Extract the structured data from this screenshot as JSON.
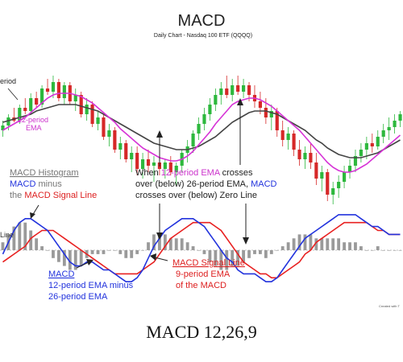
{
  "chart_data": {
    "type": "line",
    "title": "MACD",
    "subtitle": "Daily Chart - Nasdaq 100 ETF (QQQQ)",
    "price_panel": {
      "ylim": [
        0,
        100
      ],
      "candles": [
        {
          "o": 50,
          "h": 56,
          "l": 46,
          "c": 53
        },
        {
          "o": 53,
          "h": 60,
          "l": 50,
          "c": 58
        },
        {
          "o": 58,
          "h": 64,
          "l": 55,
          "c": 56
        },
        {
          "o": 56,
          "h": 66,
          "l": 54,
          "c": 64
        },
        {
          "o": 64,
          "h": 70,
          "l": 60,
          "c": 62
        },
        {
          "o": 62,
          "h": 73,
          "l": 60,
          "c": 70
        },
        {
          "o": 70,
          "h": 74,
          "l": 64,
          "c": 66
        },
        {
          "o": 66,
          "h": 78,
          "l": 64,
          "c": 76
        },
        {
          "o": 76,
          "h": 82,
          "l": 72,
          "c": 74
        },
        {
          "o": 74,
          "h": 84,
          "l": 70,
          "c": 80
        },
        {
          "o": 80,
          "h": 82,
          "l": 68,
          "c": 70
        },
        {
          "o": 70,
          "h": 80,
          "l": 66,
          "c": 78
        },
        {
          "o": 78,
          "h": 80,
          "l": 66,
          "c": 68
        },
        {
          "o": 68,
          "h": 76,
          "l": 62,
          "c": 72
        },
        {
          "o": 72,
          "h": 74,
          "l": 58,
          "c": 60
        },
        {
          "o": 60,
          "h": 70,
          "l": 56,
          "c": 66
        },
        {
          "o": 66,
          "h": 68,
          "l": 52,
          "c": 54
        },
        {
          "o": 54,
          "h": 62,
          "l": 50,
          "c": 58
        },
        {
          "o": 58,
          "h": 60,
          "l": 44,
          "c": 46
        },
        {
          "o": 46,
          "h": 54,
          "l": 40,
          "c": 50
        },
        {
          "o": 50,
          "h": 52,
          "l": 36,
          "c": 38
        },
        {
          "o": 38,
          "h": 46,
          "l": 32,
          "c": 42
        },
        {
          "o": 42,
          "h": 44,
          "l": 30,
          "c": 32
        },
        {
          "o": 32,
          "h": 40,
          "l": 24,
          "c": 36
        },
        {
          "o": 36,
          "h": 40,
          "l": 22,
          "c": 26
        },
        {
          "o": 26,
          "h": 36,
          "l": 20,
          "c": 32
        },
        {
          "o": 32,
          "h": 38,
          "l": 24,
          "c": 28
        },
        {
          "o": 28,
          "h": 34,
          "l": 18,
          "c": 30
        },
        {
          "o": 30,
          "h": 36,
          "l": 22,
          "c": 26
        },
        {
          "o": 26,
          "h": 32,
          "l": 20,
          "c": 30
        },
        {
          "o": 30,
          "h": 34,
          "l": 22,
          "c": 24
        },
        {
          "o": 24,
          "h": 30,
          "l": 16,
          "c": 28
        },
        {
          "o": 28,
          "h": 38,
          "l": 24,
          "c": 36
        },
        {
          "o": 36,
          "h": 44,
          "l": 30,
          "c": 40
        },
        {
          "o": 40,
          "h": 50,
          "l": 36,
          "c": 48
        },
        {
          "o": 48,
          "h": 58,
          "l": 44,
          "c": 54
        },
        {
          "o": 54,
          "h": 64,
          "l": 50,
          "c": 60
        },
        {
          "o": 60,
          "h": 70,
          "l": 56,
          "c": 66
        },
        {
          "o": 66,
          "h": 76,
          "l": 62,
          "c": 72
        },
        {
          "o": 72,
          "h": 80,
          "l": 66,
          "c": 76
        },
        {
          "o": 76,
          "h": 84,
          "l": 70,
          "c": 72
        },
        {
          "o": 72,
          "h": 82,
          "l": 68,
          "c": 78
        },
        {
          "o": 78,
          "h": 84,
          "l": 72,
          "c": 74
        },
        {
          "o": 74,
          "h": 82,
          "l": 70,
          "c": 78
        },
        {
          "o": 78,
          "h": 80,
          "l": 68,
          "c": 72
        },
        {
          "o": 72,
          "h": 78,
          "l": 64,
          "c": 68
        },
        {
          "o": 68,
          "h": 74,
          "l": 60,
          "c": 64
        },
        {
          "o": 64,
          "h": 70,
          "l": 54,
          "c": 58
        },
        {
          "o": 58,
          "h": 66,
          "l": 50,
          "c": 62
        },
        {
          "o": 62,
          "h": 64,
          "l": 46,
          "c": 50
        },
        {
          "o": 50,
          "h": 56,
          "l": 40,
          "c": 44
        },
        {
          "o": 44,
          "h": 52,
          "l": 38,
          "c": 48
        },
        {
          "o": 48,
          "h": 50,
          "l": 34,
          "c": 38
        },
        {
          "o": 38,
          "h": 44,
          "l": 28,
          "c": 32
        },
        {
          "o": 32,
          "h": 40,
          "l": 26,
          "c": 36
        },
        {
          "o": 36,
          "h": 42,
          "l": 26,
          "c": 30
        },
        {
          "o": 30,
          "h": 36,
          "l": 16,
          "c": 20
        },
        {
          "o": 20,
          "h": 28,
          "l": 12,
          "c": 24
        },
        {
          "o": 24,
          "h": 26,
          "l": 6,
          "c": 10
        },
        {
          "o": 10,
          "h": 18,
          "l": 4,
          "c": 14
        },
        {
          "o": 14,
          "h": 22,
          "l": 8,
          "c": 18
        },
        {
          "o": 18,
          "h": 28,
          "l": 14,
          "c": 24
        },
        {
          "o": 24,
          "h": 32,
          "l": 20,
          "c": 28
        },
        {
          "o": 28,
          "h": 38,
          "l": 24,
          "c": 34
        },
        {
          "o": 34,
          "h": 42,
          "l": 30,
          "c": 38
        },
        {
          "o": 38,
          "h": 46,
          "l": 32,
          "c": 42
        },
        {
          "o": 42,
          "h": 48,
          "l": 36,
          "c": 40
        },
        {
          "o": 40,
          "h": 50,
          "l": 38,
          "c": 46
        },
        {
          "o": 46,
          "h": 54,
          "l": 42,
          "c": 50
        },
        {
          "o": 50,
          "h": 58,
          "l": 44,
          "c": 52
        },
        {
          "o": 52,
          "h": 60,
          "l": 48,
          "c": 56
        },
        {
          "o": 56,
          "h": 62,
          "l": 52,
          "c": 60
        }
      ],
      "ema12": [
        50,
        52,
        54,
        56,
        58,
        61,
        64,
        67,
        70,
        72,
        73,
        73,
        73,
        72,
        71,
        69,
        67,
        64,
        61,
        58,
        55,
        51,
        48,
        45,
        42,
        39,
        37,
        35,
        33,
        32,
        31,
        31,
        32,
        34,
        37,
        41,
        45,
        49,
        54,
        58,
        62,
        66,
        68,
        69,
        70,
        70,
        69,
        67,
        65,
        62,
        59,
        56,
        53,
        50,
        46,
        42,
        38,
        34,
        30,
        27,
        25,
        24,
        24,
        25,
        27,
        29,
        32,
        35,
        38,
        41,
        44,
        47
      ],
      "ema26": [
        55,
        56,
        57,
        58,
        59,
        60,
        62,
        63,
        64,
        65,
        66,
        66,
        66,
        66,
        65,
        64,
        63,
        62,
        60,
        58,
        56,
        54,
        52,
        50,
        48,
        46,
        44,
        42,
        41,
        40,
        39,
        38,
        38,
        38,
        39,
        40,
        42,
        44,
        46,
        49,
        52,
        55,
        57,
        59,
        61,
        62,
        62,
        62,
        61,
        60,
        58,
        56,
        54,
        52,
        50,
        47,
        44,
        42,
        39,
        37,
        35,
        34,
        33,
        33,
        33,
        34,
        35,
        36,
        38,
        40,
        42,
        44
      ]
    },
    "macd_panel": {
      "ylim": [
        -10,
        10
      ],
      "macd": [
        -1,
        2,
        5,
        7,
        8,
        8,
        7,
        6,
        5,
        3,
        1,
        -1,
        -3,
        -4,
        -4,
        -3,
        -3,
        -4,
        -5,
        -5,
        -6,
        -7,
        -8,
        -8,
        -7,
        -5,
        -2,
        1,
        3,
        5,
        6,
        7,
        8,
        8,
        8,
        7,
        6,
        4,
        2,
        0,
        -2,
        -3,
        -5,
        -6,
        -6,
        -6,
        -7,
        -8,
        -8,
        -7,
        -5,
        -3,
        -1,
        1,
        3,
        4,
        5,
        6,
        7,
        8,
        9,
        9,
        9,
        9,
        8,
        7,
        6,
        6,
        5,
        4,
        4,
        4
      ],
      "signal": [
        -3,
        -2,
        -1,
        0,
        1,
        3,
        4,
        5,
        5,
        5,
        4,
        3,
        2,
        1,
        0,
        -1,
        -2,
        -3,
        -4,
        -5,
        -6,
        -6,
        -6,
        -6,
        -6,
        -5,
        -4,
        -3,
        -1,
        1,
        3,
        4,
        5,
        6,
        7,
        7,
        7,
        7,
        6,
        5,
        3,
        1,
        -1,
        -3,
        -4,
        -5,
        -6,
        -6,
        -7,
        -7,
        -6,
        -5,
        -4,
        -3,
        -1,
        0,
        2,
        3,
        4,
        5,
        6,
        7,
        7,
        7,
        7,
        7,
        6,
        5,
        5,
        4,
        4,
        4
      ],
      "zero_line_label": "Line"
    },
    "annotations": {
      "ema_period_1": "eriod",
      "ema12_label": "12-period\nEMA",
      "histogram_title": "MACD Histogram",
      "histogram_line2_colored": "MACD",
      "histogram_line2_rest": " minus",
      "histogram_line3_pre": "the ",
      "histogram_line3_colored": "MACD Signal Line",
      "crossover_pre": "When ",
      "crossover_colored1": "12-period EMA",
      "crossover_mid1": " crosses",
      "crossover_line2_pre": "over (below) 26-period EMA, ",
      "crossover_colored2": "MACD",
      "crossover_line3": "crosses over (below) Zero Line",
      "macd_title": "MACD",
      "macd_desc1": "12-period EMA minus",
      "macd_desc2": "26-period EMA",
      "signal_title": "MACD Signal Line",
      "signal_desc1": "9-period EMA",
      "signal_desc2": "of the MACD",
      "credit": "Created with T"
    }
  },
  "colors": {
    "up_candle": "#2db83d",
    "down_candle": "#d62828",
    "ema12": "#d633d6",
    "ema26": "#444444",
    "macd": "#2233dd",
    "signal": "#e82020",
    "histogram": "#9a9a9a",
    "ann_gray": "#777777",
    "ann_blue": "#2233dd",
    "ann_red": "#dd2020",
    "ann_magenta": "#cc33cc"
  },
  "caption": "MACD 12,26,9"
}
